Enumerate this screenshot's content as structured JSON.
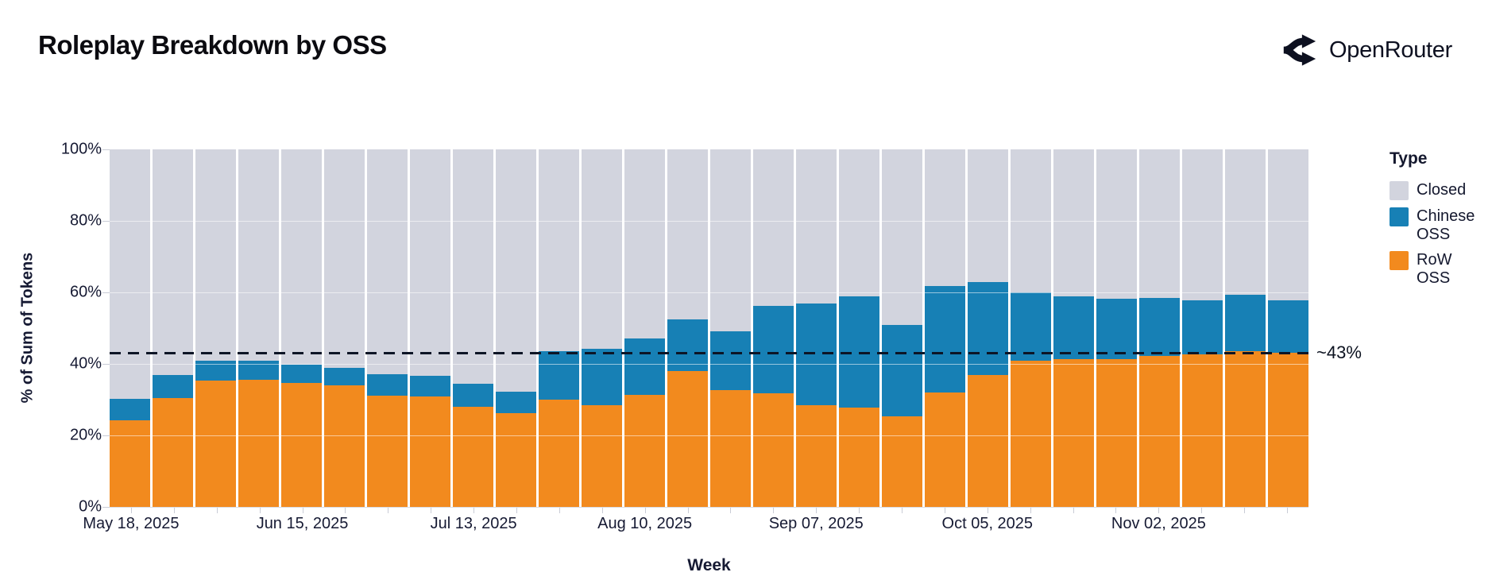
{
  "header": {
    "title": "Roleplay Breakdown by OSS",
    "brand": "OpenRouter"
  },
  "axes": {
    "y_title": "% of Sum of Tokens",
    "x_title": "Week",
    "y_tick_labels": [
      "0%",
      "20%",
      "40%",
      "60%",
      "80%",
      "100%"
    ],
    "x_tick_labels_shown": [
      "May 18, 2025",
      "Jun 15, 2025",
      "Jul 13, 2025",
      "Aug 10, 2025",
      "Sep 07, 2025",
      "Oct 05, 2025",
      "Nov 02, 2025"
    ]
  },
  "legend": {
    "title": "Type",
    "entries": [
      {
        "label": "Closed",
        "color": "#d2d4de"
      },
      {
        "label": "Chinese OSS",
        "color": "#1780b5"
      },
      {
        "label": "RoW OSS",
        "color": "#f28a1e"
      }
    ]
  },
  "annotation": {
    "label": "~43%",
    "value": 43.1
  },
  "colors": {
    "closed": "#d2d4de",
    "chinese_oss": "#1780b5",
    "row_oss": "#f28a1e",
    "dashed_line": "#0d1526",
    "axis_text": "#161a33"
  },
  "chart_data": {
    "type": "bar",
    "stacked": true,
    "title": "Roleplay Breakdown by OSS",
    "xlabel": "Week",
    "ylabel": "% of Sum of Tokens",
    "ylim": [
      0,
      100
    ],
    "grid": true,
    "legend_position": "right",
    "label_every_n": 4,
    "categories": [
      "May 18, 2025",
      "May 25, 2025",
      "Jun 01, 2025",
      "Jun 08, 2025",
      "Jun 15, 2025",
      "Jun 22, 2025",
      "Jun 29, 2025",
      "Jul 06, 2025",
      "Jul 13, 2025",
      "Jul 20, 2025",
      "Jul 27, 2025",
      "Aug 03, 2025",
      "Aug 10, 2025",
      "Aug 17, 2025",
      "Aug 24, 2025",
      "Aug 31, 2025",
      "Sep 07, 2025",
      "Sep 14, 2025",
      "Sep 21, 2025",
      "Sep 28, 2025",
      "Oct 05, 2025",
      "Oct 12, 2025",
      "Oct 19, 2025",
      "Oct 26, 2025",
      "Nov 02, 2025",
      "Nov 09, 2025",
      "Nov 16, 2025",
      "Nov 23, 2025"
    ],
    "series": [
      {
        "name": "RoW OSS",
        "color": "#f28a1e",
        "values": [
          24.2,
          30.5,
          35.3,
          35.6,
          34.6,
          33.9,
          31.2,
          30.9,
          27.9,
          26.3,
          30.0,
          28.5,
          31.3,
          38.0,
          32.6,
          31.8,
          28.4,
          27.7,
          25.3,
          32.0,
          37.0,
          41.0,
          41.4,
          41.4,
          42.2,
          42.7,
          43.6,
          43.0
        ]
      },
      {
        "name": "Chinese OSS",
        "color": "#1780b5",
        "values": [
          6.1,
          6.3,
          5.6,
          5.4,
          5.1,
          5.1,
          5.9,
          5.8,
          6.5,
          5.9,
          13.5,
          15.8,
          15.9,
          14.5,
          16.6,
          24.4,
          28.4,
          31.3,
          25.7,
          29.7,
          26.0,
          19.0,
          17.4,
          16.8,
          16.2,
          15.1,
          15.7,
          14.8
        ]
      },
      {
        "name": "Closed",
        "color": "#d2d4de",
        "values": [
          69.7,
          63.2,
          59.1,
          59.0,
          60.3,
          61.0,
          62.9,
          63.3,
          65.6,
          67.8,
          56.5,
          55.7,
          52.8,
          47.5,
          50.8,
          43.8,
          43.2,
          41.0,
          49.0,
          38.3,
          37.0,
          40.0,
          41.2,
          41.8,
          41.6,
          42.2,
          40.7,
          42.2
        ]
      }
    ],
    "annotation_line": {
      "label": "~43%",
      "value": 43.1
    }
  }
}
